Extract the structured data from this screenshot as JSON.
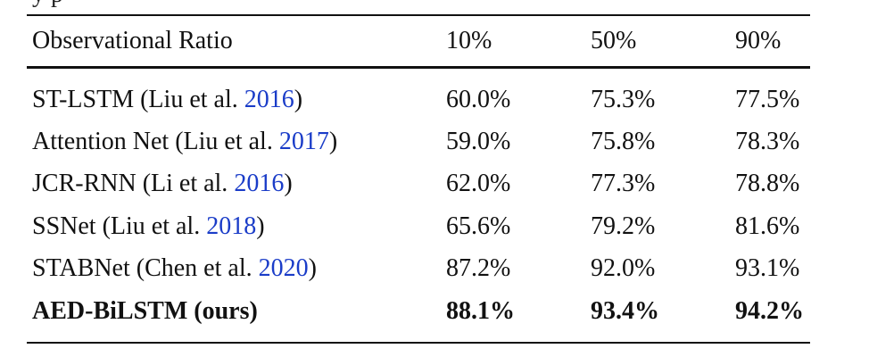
{
  "caption_fragment": "y                                  p",
  "table": {
    "headers": [
      "Observational Ratio",
      "10%",
      "50%",
      "90%"
    ],
    "rows": [
      {
        "method": "ST-LSTM (Liu et al. ",
        "year": "2016",
        "close": ")",
        "values": [
          "60.0%",
          "75.3%",
          "77.5%"
        ],
        "highlight": false
      },
      {
        "method": "Attention Net (Liu et al. ",
        "year": "2017",
        "close": ")",
        "values": [
          "59.0%",
          "75.8%",
          "78.3%"
        ],
        "highlight": false
      },
      {
        "method": "JCR-RNN (Li et al. ",
        "year": "2016",
        "close": ")",
        "values": [
          "62.0%",
          "77.3%",
          "78.8%"
        ],
        "highlight": false
      },
      {
        "method": "SSNet (Liu et al. ",
        "year": "2018",
        "close": ")",
        "values": [
          "65.6%",
          "79.2%",
          "81.6%"
        ],
        "highlight": false
      },
      {
        "method": "STABNet (Chen et al. ",
        "year": "2020",
        "close": ")",
        "values": [
          "87.2%",
          "92.0%",
          "93.1%"
        ],
        "highlight": false
      },
      {
        "method": "AED-BiLSTM (ours)",
        "year": "",
        "close": "",
        "values": [
          "88.1%",
          "93.4%",
          "94.2%"
        ],
        "highlight": true
      }
    ]
  },
  "colors": {
    "citation_link": "#1a3cc8",
    "text": "#111111"
  }
}
